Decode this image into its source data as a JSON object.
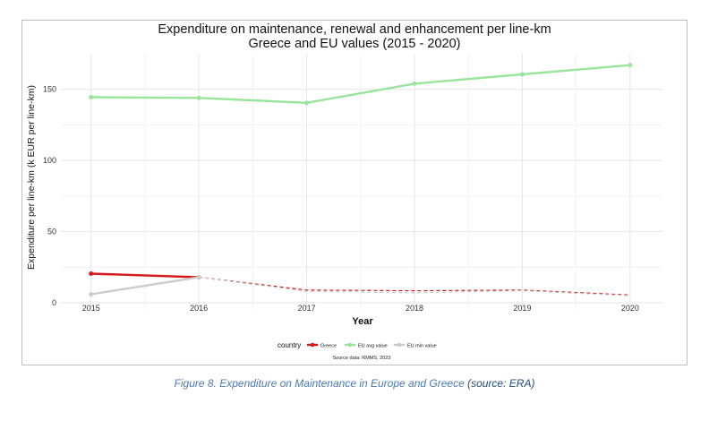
{
  "chart_data": {
    "type": "line",
    "title": "Expenditure on maintenance, renewal and enhancement per line-km",
    "subtitle": "Greece and EU values (2015 - 2020)",
    "xlabel": "Year",
    "ylabel": "Expenditure per line-km (k EUR per line-km)",
    "x": [
      2015,
      2016,
      2017,
      2018,
      2019,
      2020
    ],
    "x_ticks": [
      "2015",
      "2016",
      "2017",
      "2018",
      "2019",
      "2020"
    ],
    "y_ticks": [
      "0",
      "50",
      "100",
      "150"
    ],
    "xlim": [
      2014.72,
      2020.3
    ],
    "ylim": [
      -5,
      175
    ],
    "grid": true,
    "legend_title": "country",
    "legend_position": "bottom",
    "series": [
      {
        "name": "Greece",
        "color": "#d7191c",
        "values": [
          20.5,
          18,
          9,
          8.5,
          9,
          5.5
        ],
        "solid_until": 2016
      },
      {
        "name": "EU avg value",
        "color": "#99e59b",
        "values": [
          144.5,
          144,
          140.5,
          154,
          160.5,
          167
        ],
        "solid_until": 2020
      },
      {
        "name": "EU min value",
        "color": "#cccccc",
        "values": [
          6,
          18,
          8,
          7,
          8.5,
          5
        ],
        "solid_until": 2016
      }
    ],
    "source_note": "Source data: RMMS, 2023"
  },
  "caption": {
    "text": "Figure 8. Expenditure on Maintenance in Europe and Greece",
    "source": "(source: ERA)"
  }
}
